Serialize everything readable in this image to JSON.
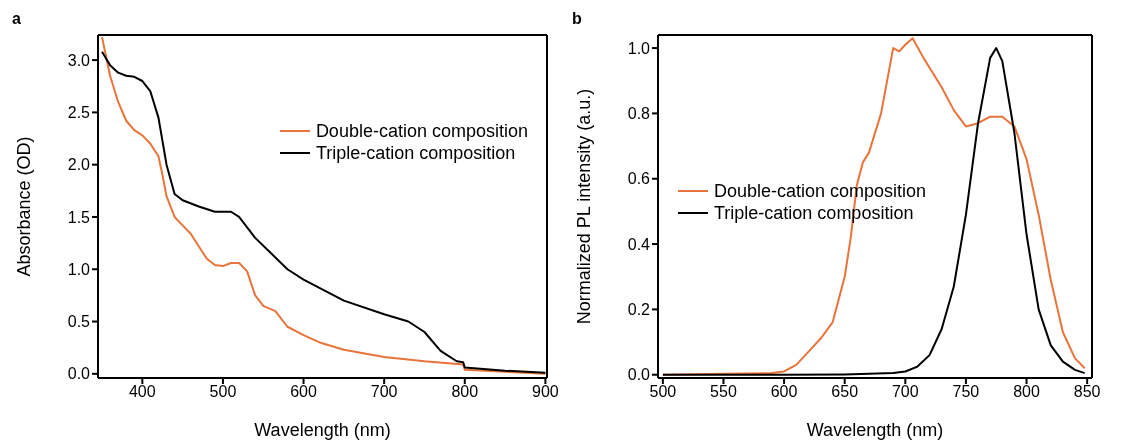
{
  "chart_data": [
    {
      "type": "line",
      "title": "a",
      "xlabel": "Wavelength (nm)",
      "ylabel": "Absorbance (OD)",
      "xlim": [
        345,
        902
      ],
      "ylim": [
        -0.04,
        3.24
      ],
      "xticks": [
        400,
        500,
        600,
        700,
        800,
        900
      ],
      "yticks": [
        {
          "value": 0,
          "label": "0.0"
        },
        0.5,
        {
          "value": 1,
          "label": "1.0"
        },
        1.5,
        {
          "value": 2,
          "label": "2.0"
        },
        2.5,
        {
          "value": 3,
          "label": "3.0"
        }
      ],
      "legend": "top right",
      "grid": false,
      "marker": "none",
      "line_style": "solid",
      "series": [
        {
          "name": "Double-cation composition",
          "color": "#e8743b",
          "x": [
            350,
            360,
            370,
            380,
            390,
            400,
            410,
            420,
            425,
            430,
            440,
            450,
            460,
            470,
            480,
            490,
            500,
            510,
            520,
            530,
            540,
            550,
            565,
            580,
            600,
            620,
            650,
            700,
            750,
            798,
            800,
            850,
            900
          ],
          "values": [
            3.22,
            2.85,
            2.6,
            2.42,
            2.33,
            2.28,
            2.2,
            2.08,
            1.9,
            1.7,
            1.5,
            1.42,
            1.34,
            1.22,
            1.1,
            1.04,
            1.03,
            1.06,
            1.06,
            0.98,
            0.75,
            0.65,
            0.6,
            0.45,
            0.37,
            0.3,
            0.23,
            0.16,
            0.12,
            0.09,
            0.04,
            0.02,
            0.0
          ]
        },
        {
          "name": "Triple-cation composition",
          "color": "#000000",
          "x": [
            350,
            360,
            370,
            380,
            390,
            400,
            410,
            420,
            430,
            440,
            450,
            470,
            490,
            510,
            520,
            540,
            560,
            580,
            600,
            650,
            700,
            730,
            750,
            770,
            790,
            798,
            800,
            850,
            900
          ],
          "values": [
            3.08,
            2.95,
            2.88,
            2.85,
            2.84,
            2.8,
            2.7,
            2.45,
            2.0,
            1.72,
            1.66,
            1.6,
            1.55,
            1.55,
            1.5,
            1.3,
            1.15,
            1.0,
            0.9,
            0.7,
            0.57,
            0.5,
            0.4,
            0.22,
            0.12,
            0.11,
            0.06,
            0.03,
            0.01
          ]
        }
      ]
    },
    {
      "type": "line",
      "title": "b",
      "xlabel": "Wavelength (nm)",
      "ylabel": "Normalized PL intensity (a.u.)",
      "xlim": [
        496,
        854
      ],
      "ylim": [
        -0.01,
        1.04
      ],
      "xticks": [
        500,
        550,
        600,
        650,
        700,
        750,
        800,
        850
      ],
      "yticks": [
        {
          "value": 0,
          "label": "0.0"
        },
        0.2,
        0.4,
        0.6,
        0.8,
        {
          "value": 1,
          "label": "1.0"
        }
      ],
      "legend": "left",
      "grid": false,
      "marker": "none",
      "line_style": "solid",
      "series": [
        {
          "name": "Double-cation composition",
          "color": "#e8743b",
          "x": [
            500,
            550,
            590,
            600,
            610,
            620,
            630,
            640,
            650,
            655,
            660,
            665,
            670,
            680,
            690,
            695,
            700,
            706,
            715,
            730,
            740,
            750,
            760,
            770,
            780,
            790,
            800,
            810,
            820,
            830,
            840,
            848
          ],
          "values": [
            0,
            0.003,
            0.005,
            0.01,
            0.03,
            0.07,
            0.11,
            0.16,
            0.3,
            0.42,
            0.58,
            0.65,
            0.68,
            0.8,
            1.0,
            0.99,
            1.01,
            1.03,
            0.97,
            0.88,
            0.81,
            0.76,
            0.77,
            0.79,
            0.79,
            0.76,
            0.66,
            0.49,
            0.29,
            0.13,
            0.05,
            0.02
          ]
        },
        {
          "name": "Triple-cation composition",
          "color": "#000000",
          "x": [
            500,
            600,
            650,
            690,
            700,
            710,
            720,
            730,
            740,
            750,
            760,
            770,
            775,
            780,
            790,
            800,
            810,
            820,
            830,
            840,
            848
          ],
          "values": [
            0,
            0,
            0.001,
            0.005,
            0.01,
            0.025,
            0.06,
            0.14,
            0.27,
            0.49,
            0.77,
            0.97,
            1.0,
            0.96,
            0.74,
            0.43,
            0.2,
            0.09,
            0.04,
            0.015,
            0.005
          ]
        }
      ]
    }
  ]
}
